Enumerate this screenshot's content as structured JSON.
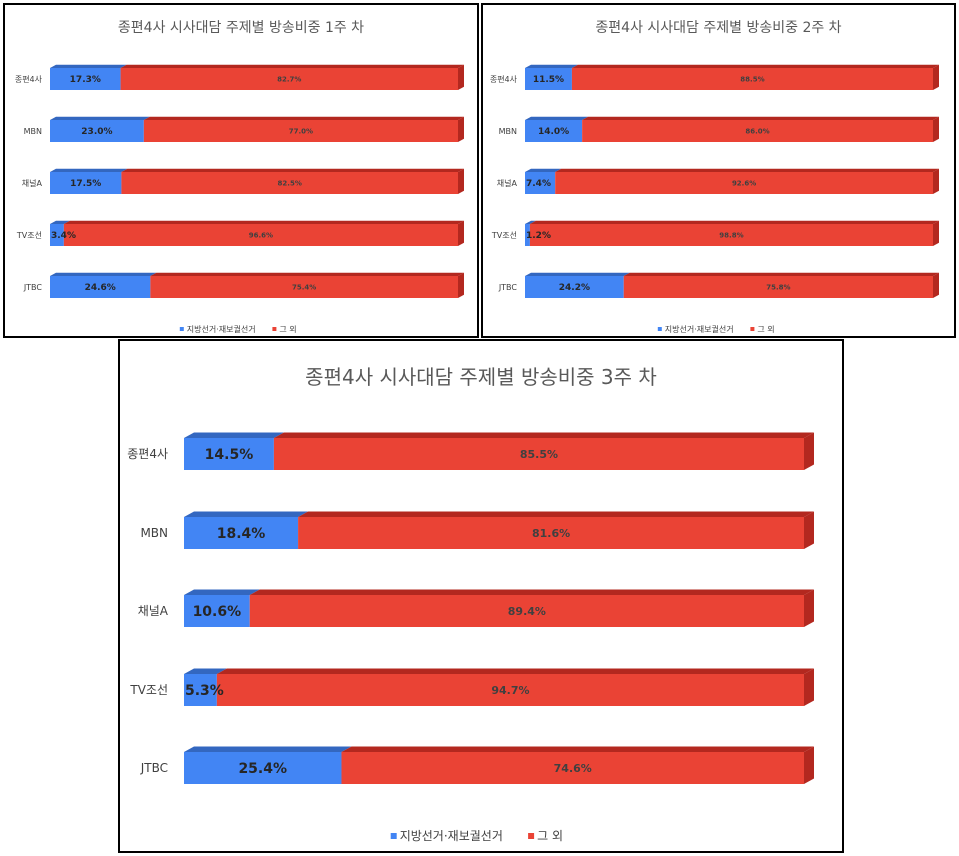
{
  "legend": {
    "series_a": "지방선거·재보궐선거",
    "series_b": "그 외"
  },
  "colors": {
    "series_a": "#4285f4",
    "series_b": "#ea4335",
    "shade_a": "#3367c0",
    "shade_b": "#b3281f"
  },
  "chart_data": [
    {
      "type": "bar",
      "title": "종편4사 시사대담 주제별 방송비중 1주 차",
      "categories": [
        "종편4사",
        "MBN",
        "채널A",
        "TV조선",
        "JTBC"
      ],
      "series": [
        {
          "name": "지방선거·재보궐선거",
          "values": [
            17.3,
            23.0,
            17.5,
            3.4,
            24.6
          ],
          "labels": [
            "17.3%",
            "23.0%",
            "17.5%",
            "3.4%",
            "24.6%"
          ]
        },
        {
          "name": "그 외",
          "values": [
            82.7,
            77.0,
            82.5,
            96.6,
            75.4
          ],
          "labels": [
            "82.7%",
            "77.0%",
            "82.5%",
            "96.6%",
            "75.4%"
          ]
        }
      ],
      "stacked": true,
      "orientation": "horizontal",
      "xlim": [
        0,
        100
      ],
      "legend_position": "bottom"
    },
    {
      "type": "bar",
      "title": "종편4사 시사대담 주제별 방송비중 2주 차",
      "categories": [
        "종편4사",
        "MBN",
        "채널A",
        "TV조선",
        "JTBC"
      ],
      "series": [
        {
          "name": "지방선거·재보궐선거",
          "values": [
            11.5,
            14.0,
            7.4,
            1.2,
            24.2
          ],
          "labels": [
            "11.5%",
            "14.0%",
            "7.4%",
            "1.2%",
            "24.2%"
          ]
        },
        {
          "name": "그 외",
          "values": [
            88.5,
            86.0,
            92.6,
            98.8,
            75.8
          ],
          "labels": [
            "88.5%",
            "86.0%",
            "92.6%",
            "98.8%",
            "75.8%"
          ]
        }
      ],
      "stacked": true,
      "orientation": "horizontal",
      "xlim": [
        0,
        100
      ],
      "legend_position": "bottom"
    },
    {
      "type": "bar",
      "title": "종편4사 시사대담 주제별 방송비중 3주 차",
      "categories": [
        "종편4사",
        "MBN",
        "채널A",
        "TV조선",
        "JTBC"
      ],
      "series": [
        {
          "name": "지방선거·재보궐선거",
          "values": [
            14.5,
            18.4,
            10.6,
            5.3,
            25.4
          ],
          "labels": [
            "14.5%",
            "18.4%",
            "10.6%",
            "5.3%",
            "25.4%"
          ]
        },
        {
          "name": "그 외",
          "values": [
            85.5,
            81.6,
            89.4,
            94.7,
            74.6
          ],
          "labels": [
            "85.5%",
            "81.6%",
            "89.4%",
            "94.7%",
            "74.6%"
          ]
        }
      ],
      "stacked": true,
      "orientation": "horizontal",
      "xlim": [
        0,
        100
      ],
      "legend_position": "bottom"
    }
  ]
}
